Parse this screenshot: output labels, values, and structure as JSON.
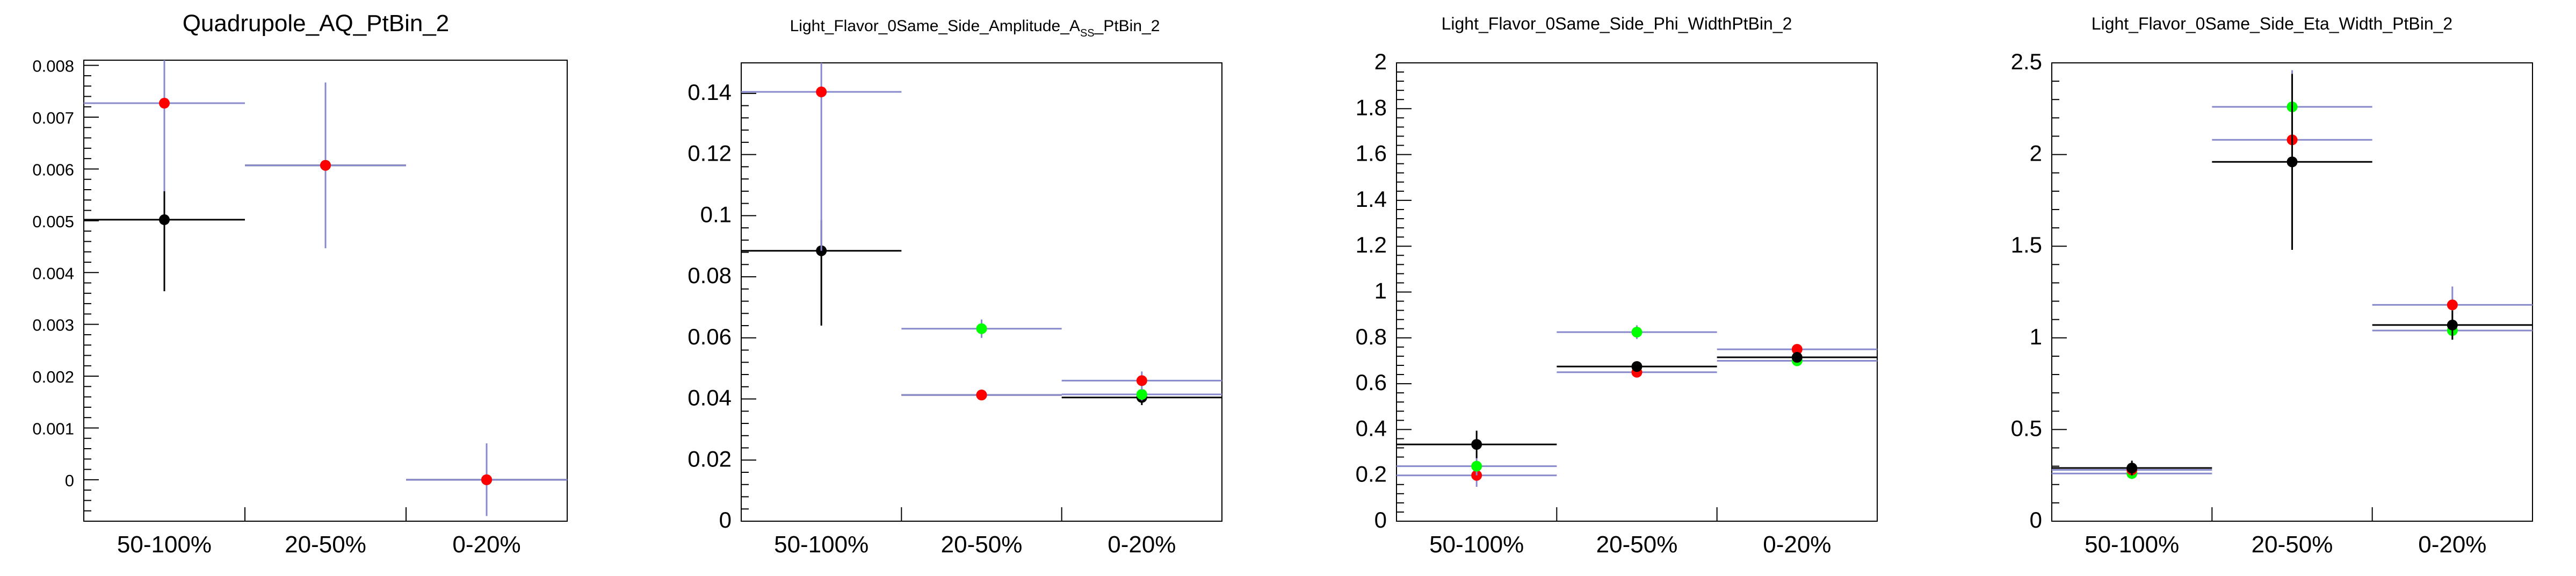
{
  "chart_data": [
    {
      "type": "scatter",
      "title": "Quadrupole_AQ_PtBin_2",
      "categories": [
        "50-100%",
        "20-50%",
        "0-20%"
      ],
      "ylim": [
        -0.0008,
        0.0081
      ],
      "yticks": [
        0,
        0.001,
        0.002,
        0.003,
        0.004,
        0.005,
        0.006,
        0.007,
        0.008
      ],
      "ytick_labels": [
        "0",
        "0.001",
        "0.002",
        "0.003",
        "0.004",
        "0.005",
        "0.006",
        "0.007",
        "0.008"
      ],
      "series": [
        {
          "color": "#000000",
          "values": [
            0.00502,
            0.00607,
            0.0
          ],
          "err_low": [
            0.00138,
            0.0016,
            0.00045
          ],
          "err_high": [
            0.00136,
            0.0016,
            0.0007
          ]
        },
        {
          "color": "#ff0000",
          "hline_color": "#8888cc",
          "values": [
            0.00727,
            0.00607,
            0.0
          ],
          "err_low": [
            0.0017,
            0.0016,
            0.0007
          ],
          "err_high": [
            0.0017,
            0.0016,
            0.0007
          ]
        }
      ]
    },
    {
      "type": "scatter",
      "title": "Light_Flavor_0Same_Side_Amplitude_A",
      "title_sub": "SS",
      "title_tail": "_PtBin_2",
      "categories": [
        "50-100%",
        "20-50%",
        "0-20%"
      ],
      "ylim": [
        0,
        0.15
      ],
      "yticks": [
        0,
        0.02,
        0.04,
        0.06,
        0.08,
        0.1,
        0.12,
        0.14
      ],
      "ytick_labels": [
        "0",
        "0.02",
        "0.04",
        "0.06",
        "0.08",
        "0.1",
        "0.12",
        "0.14"
      ],
      "series": [
        {
          "color": "#000000",
          "values": [
            0.0885,
            0.0413,
            0.0405
          ],
          "err_low": [
            0.0245,
            0.001,
            0.0025
          ],
          "err_high": [
            0.01,
            0.001,
            0.0025
          ]
        },
        {
          "color": "#00ff00",
          "hline_color": "#8888cc",
          "values": [
            null,
            0.063,
            0.0415
          ],
          "err_low": [
            0,
            0.003,
            0.002
          ],
          "err_high": [
            0,
            0.003,
            0.002
          ]
        },
        {
          "color": "#ff0000",
          "hline_color": "#8888cc",
          "values": [
            0.1405,
            0.0413,
            0.046
          ],
          "err_low": [
            0.052,
            0.001,
            0.003
          ],
          "err_high": [
            0.012,
            0.001,
            0.003
          ]
        }
      ]
    },
    {
      "type": "scatter",
      "title": "Light_Flavor_0Same_Side_Phi_WidthPtBin_2",
      "categories": [
        "50-100%",
        "20-50%",
        "0-20%"
      ],
      "ylim": [
        0,
        2
      ],
      "yticks": [
        0,
        0.2,
        0.4,
        0.6,
        0.8,
        1,
        1.2,
        1.4,
        1.6,
        1.8,
        2
      ],
      "ytick_labels": [
        "0",
        "0.2",
        "0.4",
        "0.6",
        "0.8",
        "1",
        "1.2",
        "1.4",
        "1.6",
        "1.8",
        "2"
      ],
      "series": [
        {
          "color": "#ff0000",
          "hline_color": "#8888cc",
          "values": [
            0.2,
            0.65,
            0.75
          ],
          "err_low": [
            0.05,
            0.02,
            0.02
          ],
          "err_high": [
            0.05,
            0.02,
            0.02
          ]
        },
        {
          "color": "#00ff00",
          "hline_color": "#8888cc",
          "values": [
            0.24,
            0.825,
            0.7
          ],
          "err_low": [
            0.04,
            0.03,
            0.02
          ],
          "err_high": [
            0.04,
            0.03,
            0.02
          ]
        },
        {
          "color": "#000000",
          "values": [
            0.335,
            0.675,
            0.715
          ],
          "err_low": [
            0.06,
            0.02,
            0.02
          ],
          "err_high": [
            0.06,
            0.02,
            0.02
          ]
        }
      ]
    },
    {
      "type": "scatter",
      "title": "Light_Flavor_0Same_Side_Eta_Width_PtBin_2",
      "categories": [
        "50-100%",
        "20-50%",
        "0-20%"
      ],
      "ylim": [
        0,
        2.5
      ],
      "yticks": [
        0,
        0.5,
        1,
        1.5,
        2,
        2.5
      ],
      "ytick_labels": [
        "0",
        "0.5",
        "1",
        "1.5",
        "2",
        "2.5"
      ],
      "series": [
        {
          "color": "#00ff00",
          "hline_color": "#8888cc",
          "values": [
            0.26,
            2.26,
            1.04
          ],
          "err_low": [
            0.03,
            0.2,
            0.05
          ],
          "err_high": [
            0.03,
            0.2,
            0.05
          ]
        },
        {
          "color": "#ff0000",
          "hline_color": "#8888cc",
          "values": [
            0.28,
            2.08,
            1.18
          ],
          "err_low": [
            0.03,
            0.6,
            0.1
          ],
          "err_high": [
            0.03,
            0.3,
            0.1
          ]
        },
        {
          "color": "#000000",
          "values": [
            0.29,
            1.96,
            1.07
          ],
          "err_low": [
            0.04,
            0.48,
            0.08
          ],
          "err_high": [
            0.04,
            0.48,
            0.08
          ]
        }
      ]
    }
  ]
}
